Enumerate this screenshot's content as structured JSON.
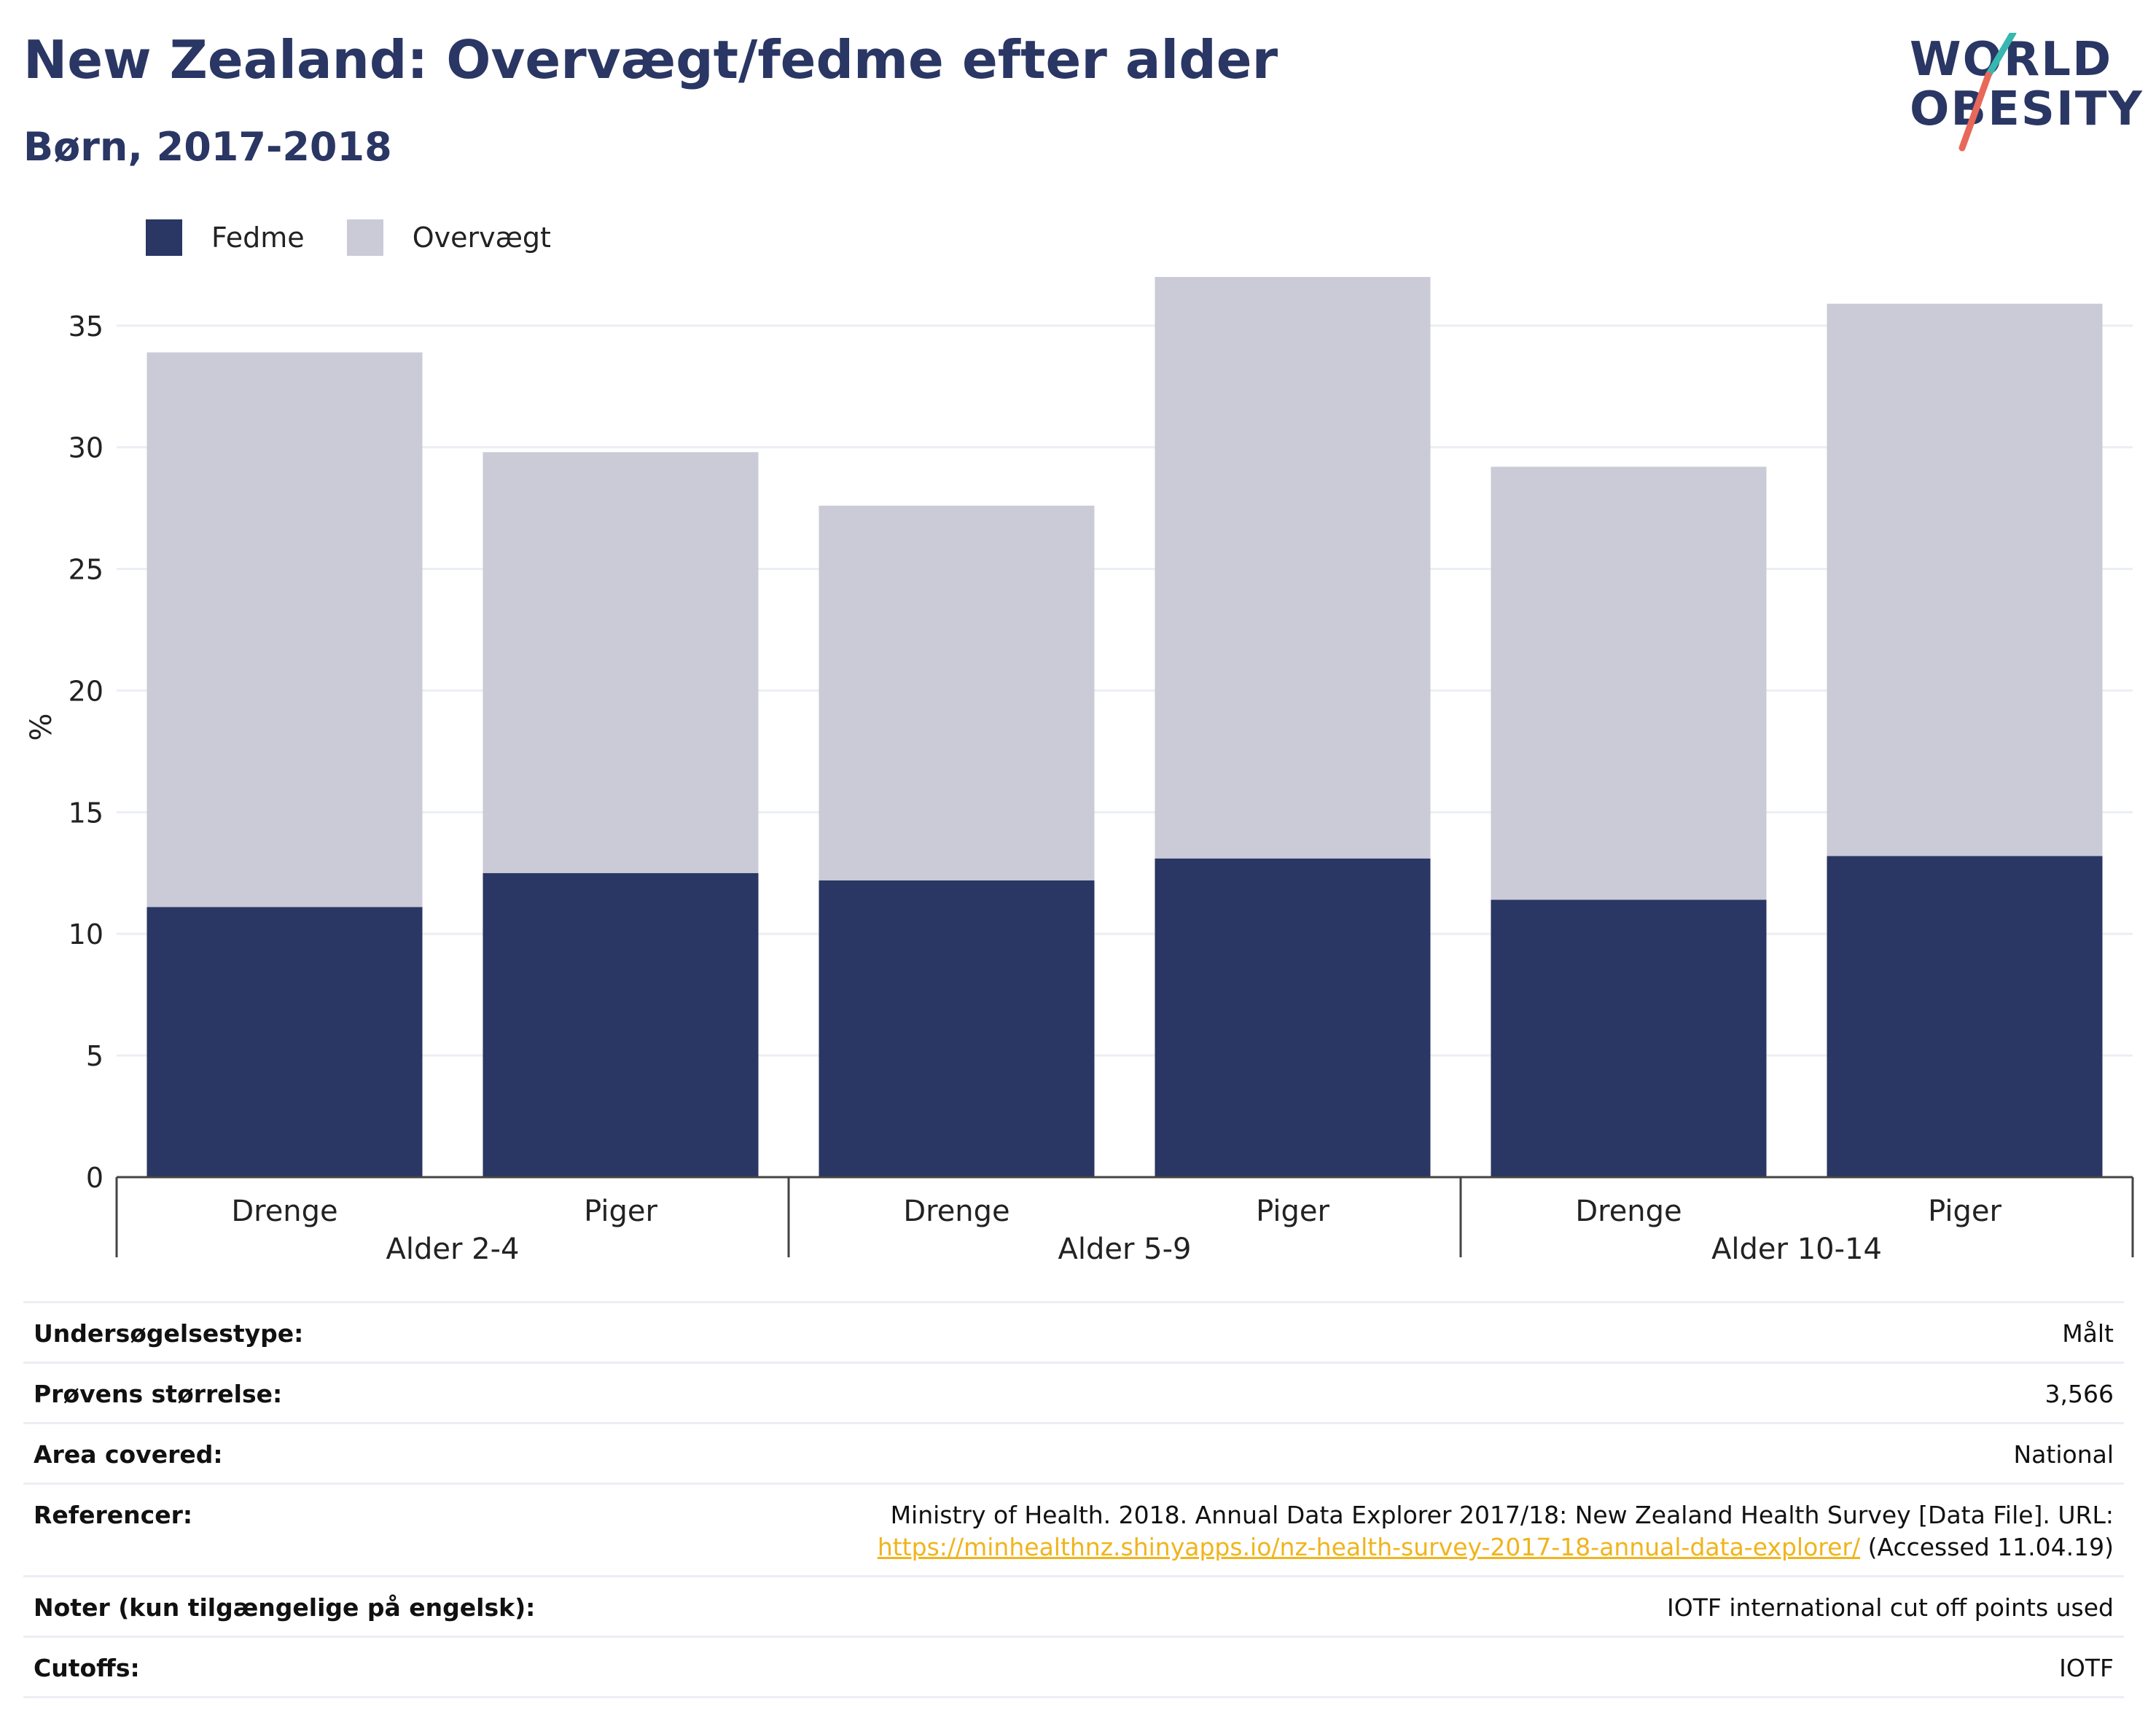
{
  "header": {
    "title": "New Zealand: Overvægt/fedme efter alder",
    "subtitle": "Børn, 2017-2018"
  },
  "logo": {
    "line1": "WORLD",
    "line2": "OBESITY",
    "colors": {
      "text": "#2a3663",
      "slash_top": "#38b6b0",
      "slash_bottom": "#e8685a"
    }
  },
  "legend": [
    {
      "label": "Fedme",
      "color": "#2a3663"
    },
    {
      "label": "Overvægt",
      "color": "#cacbd7"
    }
  ],
  "chart_data": {
    "type": "bar",
    "stacked": true,
    "ylabel": "%",
    "ylim": [
      0,
      37
    ],
    "yticks": [
      0,
      5,
      10,
      15,
      20,
      25,
      30,
      35
    ],
    "grid": true,
    "legend_position": "top-left",
    "groups": [
      "Alder 2-4",
      "Alder 5-9",
      "Alder 10-14"
    ],
    "categories": [
      "Drenge",
      "Piger",
      "Drenge",
      "Piger",
      "Drenge",
      "Piger"
    ],
    "series": [
      {
        "name": "Fedme",
        "color": "#2a3663",
        "values": [
          11.1,
          12.5,
          12.2,
          13.1,
          11.4,
          13.2
        ]
      },
      {
        "name": "Overvægt",
        "color": "#cacbd7",
        "values": [
          22.8,
          17.3,
          15.4,
          24.1,
          17.8,
          22.7
        ]
      }
    ]
  },
  "info": {
    "rows": [
      {
        "key": "Undersøgelsestype:",
        "value": "Målt"
      },
      {
        "key": "Prøvens størrelse:",
        "value": "3,566"
      },
      {
        "key": "Area covered:",
        "value": "National"
      },
      {
        "key": "Referencer:",
        "value": "Ministry of Health. 2018. Annual Data Explorer 2017/18: New Zealand Health Survey [Data File]. URL:",
        "link": "https://minhealthnz.shinyapps.io/nz-health-survey-2017-18-annual-data-explorer/",
        "suffix": " (Accessed 11.04.19)"
      },
      {
        "key": "Noter (kun tilgængelige på engelsk):",
        "value": "IOTF international cut off points used"
      },
      {
        "key": "Cutoffs:",
        "value": "IOTF"
      }
    ]
  }
}
